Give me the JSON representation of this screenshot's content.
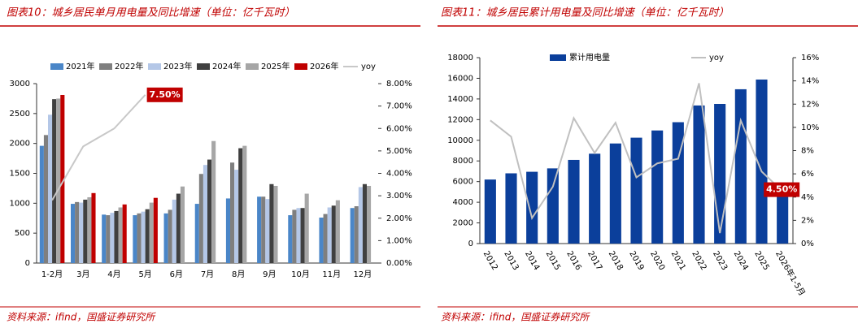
{
  "chart_data": [
    {
      "type": "bar",
      "title": "图表10：城乡居民单月用电量及同比增速（单位：亿千瓦时）",
      "source": "资料来源：ifind，国盛证券研究所",
      "categories": [
        "1-2月",
        "3月",
        "4月",
        "5月",
        "6月",
        "7月",
        "8月",
        "9月",
        "10月",
        "11月",
        "12月"
      ],
      "series": [
        {
          "name": "2021年",
          "color": "#4a86c8",
          "values": [
            1960,
            990,
            810,
            800,
            830,
            990,
            1080,
            1110,
            800,
            760,
            920
          ]
        },
        {
          "name": "2022年",
          "color": "#7f7f7f",
          "values": [
            2140,
            1020,
            800,
            830,
            890,
            1490,
            1680,
            1110,
            890,
            820,
            950
          ]
        },
        {
          "name": "2023年",
          "color": "#b4c7e7",
          "values": [
            2480,
            1010,
            840,
            860,
            1060,
            1640,
            1560,
            1070,
            920,
            930,
            1270
          ]
        },
        {
          "name": "2024年",
          "color": "#404040",
          "values": [
            2740,
            1060,
            870,
            900,
            1160,
            1730,
            1920,
            1320,
            920,
            960,
            1320
          ]
        },
        {
          "name": "2025年",
          "color": "#a6a6a6",
          "values": [
            2750,
            1100,
            930,
            1010,
            1280,
            2040,
            1960,
            1290,
            1160,
            1050,
            1290
          ]
        },
        {
          "name": "2026年",
          "color": "#c00000",
          "values": [
            2810,
            1170,
            980,
            1090,
            null,
            null,
            null,
            null,
            null,
            null,
            null
          ]
        },
        {
          "name": "yoy",
          "type": "line",
          "axis": "y2",
          "color": "#c8c8c8",
          "values": [
            2.8,
            5.2,
            6.0,
            7.5,
            null,
            null,
            null,
            null,
            null,
            null,
            null
          ],
          "value_labels": [
            null,
            null,
            null,
            "7.50%",
            null,
            null,
            null,
            null,
            null,
            null,
            null
          ]
        }
      ],
      "ylim": [
        0,
        3000
      ],
      "yticks": [
        0,
        500,
        1000,
        1500,
        2000,
        2500,
        3000
      ],
      "y2lim": [
        0,
        8
      ],
      "y2ticks": [
        {
          "value": 0,
          "label": "0.00%"
        },
        {
          "value": 1,
          "label": "1.00%"
        },
        {
          "value": 2,
          "label": "2.00%"
        },
        {
          "value": 3,
          "label": "3.00%"
        },
        {
          "value": 4,
          "label": "4.00%"
        },
        {
          "value": 5,
          "label": "5.00%"
        },
        {
          "value": 6,
          "label": "6.00%"
        },
        {
          "value": 7,
          "label": "7.00%"
        },
        {
          "value": 8,
          "label": "8.00%"
        }
      ],
      "label_color": "#c00000"
    },
    {
      "type": "bar",
      "title": "图表11：城乡居民累计用电量及同比增速（单位：亿千瓦时）",
      "source": "资料来源：ifind，国盛证券研究所",
      "categories": [
        "2012",
        "2013",
        "2014",
        "2015",
        "2016",
        "2017",
        "2018",
        "2019",
        "2020",
        "2021",
        "2022",
        "2023",
        "2024",
        "2025",
        "2026年1-5月"
      ],
      "series": [
        {
          "name": "累计用电量",
          "color": "#0b3f9b",
          "values": [
            6200,
            6800,
            6950,
            7280,
            8100,
            8700,
            9690,
            10250,
            10950,
            11750,
            13370,
            13520,
            14940,
            15880,
            5900
          ]
        },
        {
          "name": "yoy",
          "type": "line",
          "axis": "y2",
          "color": "#c0c0c0",
          "values": [
            10.6,
            9.2,
            2.2,
            4.9,
            10.8,
            7.8,
            10.4,
            5.7,
            6.9,
            7.3,
            13.8,
            0.9,
            10.6,
            6.2,
            4.5
          ],
          "value_labels": [
            null,
            null,
            null,
            null,
            null,
            null,
            null,
            null,
            null,
            null,
            null,
            null,
            null,
            null,
            "4.50%"
          ]
        }
      ],
      "ylim": [
        0,
        18000
      ],
      "yticks": [
        0,
        2000,
        4000,
        6000,
        8000,
        10000,
        12000,
        14000,
        16000,
        18000
      ],
      "y2lim": [
        0,
        16
      ],
      "y2ticks": [
        {
          "value": 0,
          "label": "0%"
        },
        {
          "value": 2,
          "label": "2%"
        },
        {
          "value": 4,
          "label": "4%"
        },
        {
          "value": 6,
          "label": "6%"
        },
        {
          "value": 8,
          "label": "8%"
        },
        {
          "value": 10,
          "label": "10%"
        },
        {
          "value": 12,
          "label": "12%"
        },
        {
          "value": 14,
          "label": "14%"
        },
        {
          "value": 16,
          "label": "16%"
        }
      ],
      "label_color": "#c00000"
    }
  ]
}
